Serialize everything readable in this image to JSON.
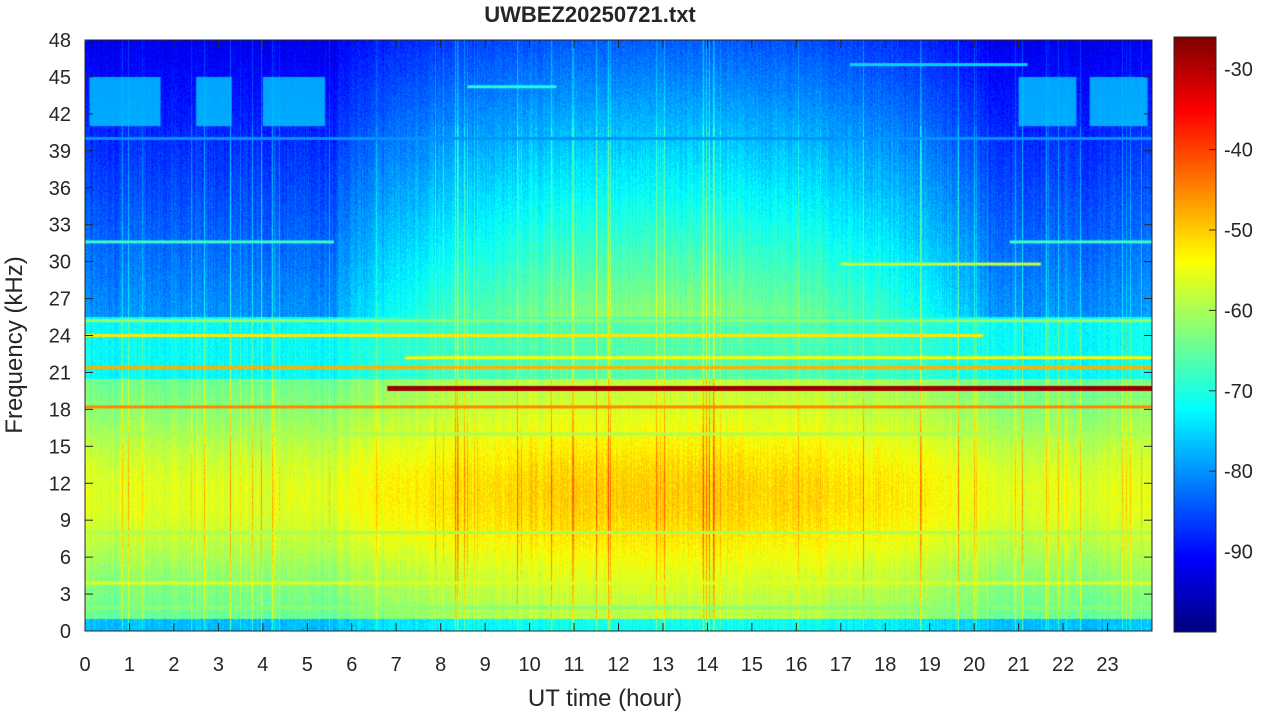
{
  "chart_data": {
    "type": "heatmap",
    "title": "UWBEZ20250721.txt",
    "xlabel": "UT time (hour)",
    "ylabel": "Frequency (kHz)",
    "xlim": [
      0,
      24
    ],
    "ylim": [
      0,
      48
    ],
    "x_ticks": [
      "0",
      "1",
      "2",
      "3",
      "4",
      "5",
      "6",
      "7",
      "8",
      "9",
      "10",
      "11",
      "12",
      "13",
      "14",
      "15",
      "16",
      "17",
      "18",
      "19",
      "20",
      "21",
      "22",
      "23"
    ],
    "y_ticks": [
      "0",
      "3",
      "6",
      "9",
      "12",
      "15",
      "18",
      "21",
      "24",
      "27",
      "30",
      "33",
      "36",
      "39",
      "42",
      "45",
      "48"
    ],
    "colorbar": {
      "colormap": "jet",
      "range": [
        -100,
        -26
      ],
      "ticks": [
        "-90",
        "-80",
        "-70",
        "-60",
        "-50",
        "-40",
        "-30"
      ]
    },
    "features": [
      {
        "kind": "band",
        "freq_khz": 19.7,
        "start_hour": 6.8,
        "end_hour": 24,
        "level_db": -28
      },
      {
        "kind": "band",
        "freq_khz": 18.2,
        "start_hour": 0,
        "end_hour": 24,
        "level_db": -45
      },
      {
        "kind": "band",
        "freq_khz": 21.4,
        "start_hour": 0,
        "end_hour": 24,
        "level_db": -48
      },
      {
        "kind": "band",
        "freq_khz": 24.0,
        "start_hour": 0,
        "end_hour": 20.2,
        "level_db": -52
      },
      {
        "kind": "band",
        "freq_khz": 22.2,
        "start_hour": 7.2,
        "end_hour": 24,
        "level_db": -54
      },
      {
        "kind": "band",
        "freq_khz": 3.9,
        "start_hour": 0,
        "end_hour": 24,
        "level_db": -56
      },
      {
        "kind": "band",
        "freq_khz": 25.2,
        "start_hour": 0,
        "end_hour": 24,
        "level_db": -62
      },
      {
        "kind": "band",
        "freq_khz": 1.9,
        "start_hour": 0,
        "end_hour": 24,
        "level_db": -62
      },
      {
        "kind": "band",
        "freq_khz": 29.8,
        "start_hour": 17.0,
        "end_hour": 21.5,
        "level_db": -58
      },
      {
        "kind": "band",
        "freq_khz": 31.6,
        "start_hour": 0,
        "end_hour": 5.6,
        "level_db": -68
      },
      {
        "kind": "band",
        "freq_khz": 31.6,
        "start_hour": 20.8,
        "end_hour": 24,
        "level_db": -68
      },
      {
        "kind": "band",
        "freq_khz": 16.0,
        "start_hour": 0,
        "end_hour": 24,
        "level_db": -60
      },
      {
        "kind": "band",
        "freq_khz": 8.0,
        "start_hour": 0,
        "end_hour": 24,
        "level_db": -60
      },
      {
        "kind": "band",
        "freq_khz": 40.0,
        "start_hour": 0,
        "end_hour": 24,
        "level_db": -80
      },
      {
        "kind": "band",
        "freq_khz": 44.2,
        "start_hour": 8.6,
        "end_hour": 10.6,
        "level_db": -70
      },
      {
        "kind": "band",
        "freq_khz": 46.0,
        "start_hour": 17.2,
        "end_hour": 21.2,
        "level_db": -75
      },
      {
        "kind": "patch",
        "start_hour": 0.1,
        "end_hour": 1.7,
        "f_low_khz": 41.0,
        "f_high_khz": 45.0,
        "level_db": -75
      },
      {
        "kind": "patch",
        "start_hour": 2.5,
        "end_hour": 3.3,
        "f_low_khz": 41.0,
        "f_high_khz": 45.0,
        "level_db": -75
      },
      {
        "kind": "patch",
        "start_hour": 4.0,
        "end_hour": 5.4,
        "f_low_khz": 41.0,
        "f_high_khz": 45.0,
        "level_db": -75
      },
      {
        "kind": "patch",
        "start_hour": 21.0,
        "end_hour": 22.3,
        "f_low_khz": 41.0,
        "f_high_khz": 45.0,
        "level_db": -75
      },
      {
        "kind": "patch",
        "start_hour": 22.6,
        "end_hour": 23.9,
        "f_low_khz": 41.0,
        "f_high_khz": 45.0,
        "level_db": -75
      }
    ],
    "grid": false
  }
}
